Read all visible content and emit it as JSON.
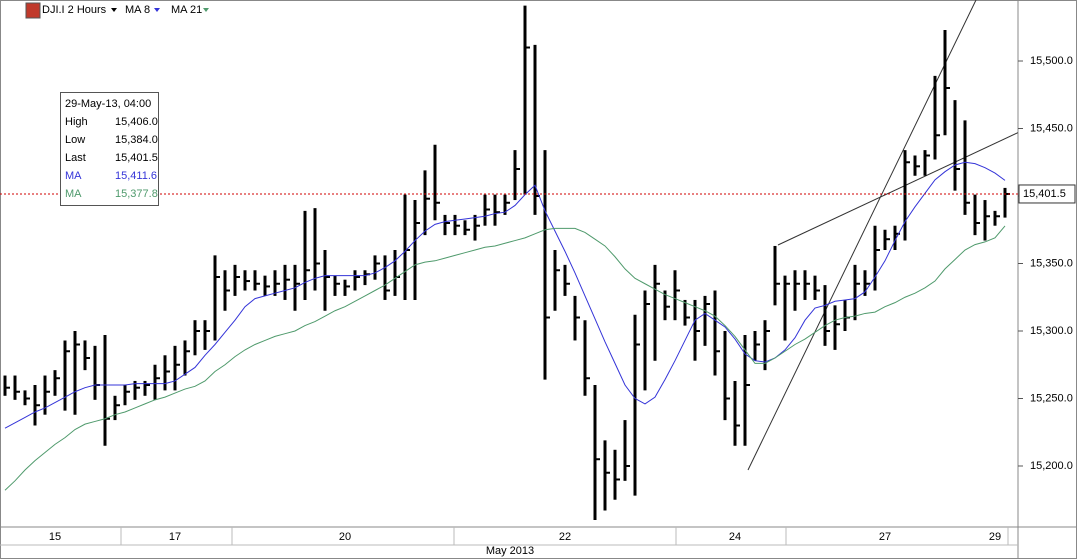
{
  "chart_data": {
    "type": "ohlc",
    "title": "DJI.I 2 Hours",
    "x_label": "May 2013",
    "color": "#000000",
    "categories": [
      null,
      null,
      null,
      null,
      null,
      "15",
      null,
      null,
      null,
      null,
      null,
      null,
      null,
      null,
      null,
      null,
      null,
      "17",
      null,
      null,
      null,
      null,
      null,
      null,
      null,
      null,
      null,
      null,
      null,
      null,
      null,
      null,
      null,
      null,
      "20",
      null,
      null,
      null,
      null,
      null,
      null,
      null,
      null,
      null,
      null,
      null,
      null,
      null,
      null,
      null,
      null,
      null,
      null,
      null,
      null,
      null,
      "22",
      null,
      null,
      null,
      null,
      null,
      null,
      null,
      null,
      null,
      null,
      null,
      null,
      null,
      null,
      null,
      null,
      "24",
      null,
      null,
      null,
      null,
      null,
      null,
      null,
      null,
      null,
      null,
      null,
      null,
      null,
      null,
      "27",
      null,
      null,
      null,
      null,
      null,
      null,
      null,
      null,
      null,
      null,
      "29",
      null
    ],
    "high": [
      15267,
      15267,
      15256,
      15260,
      15267,
      15271,
      15293,
      15300,
      15293,
      15289,
      15297,
      15252,
      15260,
      15263,
      15263,
      15275,
      15282,
      15289,
      15293,
      15308,
      15308,
      15356,
      15345,
      15349,
      15345,
      15345,
      15341,
      15345,
      15349,
      15349,
      15389,
      15391,
      15360,
      15341,
      15338,
      15345,
      15345,
      15356,
      15356,
      15360,
      15401,
      15397,
      15419,
      15438,
      15386,
      15386,
      15382,
      15386,
      15401,
      15401,
      15401,
      15434,
      15541,
      15512,
      15434,
      15360,
      15349,
      15326,
      15308,
      15260,
      15219,
      15212,
      15234,
      15312,
      15330,
      15349,
      15330,
      15345,
      15323,
      15323,
      15326,
      15330,
      15300,
      15263,
      15297,
      15300,
      15308,
      15363,
      15341,
      15345,
      15345,
      15341,
      15334,
      15319,
      15323,
      15349,
      15345,
      15378,
      15375,
      15378,
      15434,
      15430,
      15434,
      15489,
      15523,
      15471,
      15456,
      15401,
      15397,
      15389,
      15406
    ],
    "low": [
      15252,
      15249,
      15245,
      15230,
      15238,
      15252,
      15241,
      15238,
      15271,
      15249,
      15215,
      15234,
      15245,
      15249,
      15252,
      15249,
      15256,
      15256,
      15267,
      15282,
      15286,
      15293,
      15315,
      15326,
      15330,
      15330,
      15326,
      15326,
      15323,
      15315,
      15323,
      15330,
      15315,
      15326,
      15326,
      15330,
      15334,
      15338,
      15323,
      15326,
      15323,
      15323,
      15371,
      15382,
      15371,
      15371,
      15371,
      15367,
      15378,
      15378,
      15386,
      15397,
      15401,
      15386,
      15264,
      15315,
      15326,
      15293,
      15252,
      15160,
      15167,
      15175,
      15189,
      15178,
      15256,
      15278,
      15308,
      15308,
      15304,
      15278,
      15289,
      15267,
      15234,
      15215,
      15215,
      15278,
      15271,
      15319,
      15293,
      15315,
      15323,
      15323,
      15289,
      15286,
      15300,
      15308,
      15326,
      15330,
      15360,
      15360,
      15367,
      15415,
      15415,
      15427,
      15445,
      15404,
      15386,
      15371,
      15367,
      15378,
      15384
    ],
    "close": [
      15258,
      15255,
      15250,
      15245,
      15255,
      15265,
      15285,
      15290,
      15280,
      15260,
      15235,
      15245,
      15255,
      15258,
      15260,
      15265,
      15270,
      15275,
      15285,
      15300,
      15300,
      15340,
      15330,
      15340,
      15337,
      15335,
      15333,
      15335,
      15338,
      15335,
      15345,
      15350,
      15340,
      15335,
      15333,
      15340,
      15342,
      15350,
      15330,
      15340,
      15360,
      15380,
      15398,
      15395,
      15380,
      15378,
      15375,
      15378,
      15390,
      15388,
      15395,
      15420,
      15510,
      15400,
      15310,
      15345,
      15335,
      15310,
      15265,
      15205,
      15195,
      15190,
      15200,
      15290,
      15320,
      15335,
      15318,
      15330,
      15310,
      15300,
      15320,
      15285,
      15250,
      15230,
      15260,
      15290,
      15300,
      15335,
      15335,
      15335,
      15335,
      15330,
      15300,
      15305,
      15310,
      15335,
      15335,
      15360,
      15368,
      15372,
      15425,
      15422,
      15430,
      15445,
      15480,
      15420,
      15395,
      15380,
      15385,
      15385,
      15401.5
    ],
    "series": [
      {
        "name": "MA 8",
        "color": "#3434d8",
        "values": [
          15228,
          15232,
          15236,
          15240,
          15243,
          15247,
          15251,
          15255,
          15258,
          15260,
          15260,
          15260,
          15260,
          15261,
          15261,
          15261,
          15261,
          15263,
          15268,
          15273,
          15282,
          15290,
          15299,
          15308,
          15318,
          15324,
          15326,
          15328,
          15330,
          15332,
          15336,
          15339,
          15341,
          15341,
          15341,
          15341,
          15341,
          15343,
          15347,
          15352,
          15359,
          15367,
          15374,
          15379,
          15381,
          15382,
          15383,
          15384,
          15385,
          15387,
          15388,
          15393,
          15401,
          15408,
          15389,
          15374,
          15359,
          15343,
          15326,
          15309,
          15292,
          15276,
          15260,
          15250,
          15246,
          15251,
          15264,
          15278,
          15293,
          15308,
          15313,
          15308,
          15303,
          15294,
          15283,
          15278,
          15277,
          15280,
          15286,
          15295,
          15308,
          15317,
          15319,
          15322,
          15323,
          15324,
          15329,
          15340,
          15352,
          15367,
          15381,
          15392,
          15402,
          15412,
          15418,
          15423,
          15425,
          15424,
          15421,
          15417,
          15411.6
        ]
      },
      {
        "name": "MA 21",
        "color": "#4f9a6c",
        "values": [
          15182,
          15189,
          15197,
          15204,
          15210,
          15216,
          15221,
          15227,
          15231,
          15233,
          15235,
          15238,
          15240,
          15243,
          15246,
          15249,
          15251,
          15254,
          15257,
          15259,
          15263,
          15270,
          15275,
          15281,
          15286,
          15290,
          15293,
          15296,
          15298,
          15300,
          15304,
          15307,
          15311,
          15315,
          15318,
          15322,
          15326,
          15330,
          15334,
          15339,
          15344,
          15349,
          15351,
          15352,
          15354,
          15356,
          15358,
          15360,
          15362,
          15363,
          15365,
          15367,
          15369,
          15372,
          15375,
          15376,
          15376,
          15376,
          15373,
          15368,
          15363,
          15355,
          15346,
          15339,
          15335,
          15331,
          15327,
          15324,
          15321,
          15318,
          15315,
          15311,
          15304,
          15296,
          15286,
          15276,
          15276,
          15280,
          15285,
          15290,
          15294,
          15299,
          15304,
          15308,
          15310,
          15311,
          15313,
          15314,
          15318,
          15321,
          15325,
          15328,
          15332,
          15337,
          15346,
          15353,
          15360,
          15364,
          15366,
          15369,
          15377.8
        ]
      }
    ],
    "ylim": [
      15154.8,
      15545.2
    ],
    "yticks": [
      {
        "value": 15200,
        "label": "15,200.0"
      },
      {
        "value": 15250,
        "label": "15,250.0"
      },
      {
        "value": 15300,
        "label": "15,300.0"
      },
      {
        "value": 15350,
        "label": "15,350.0"
      },
      {
        "value": 15400,
        "label": "15,400.0"
      },
      {
        "value": 15450,
        "label": "15,450.0"
      },
      {
        "value": 15500,
        "label": "15,500.0"
      }
    ],
    "info_box": {
      "date": "29-May-13, 04:00",
      "rows": [
        {
          "label": "High",
          "value": "15,406.0"
        },
        {
          "label": "Low",
          "value": "15,384.0"
        },
        {
          "label": "Last",
          "value": "15,401.5"
        },
        {
          "label": "MA",
          "value": "15,411.6"
        },
        {
          "label": "MA",
          "value": "15,377.8"
        }
      ]
    }
  }
}
